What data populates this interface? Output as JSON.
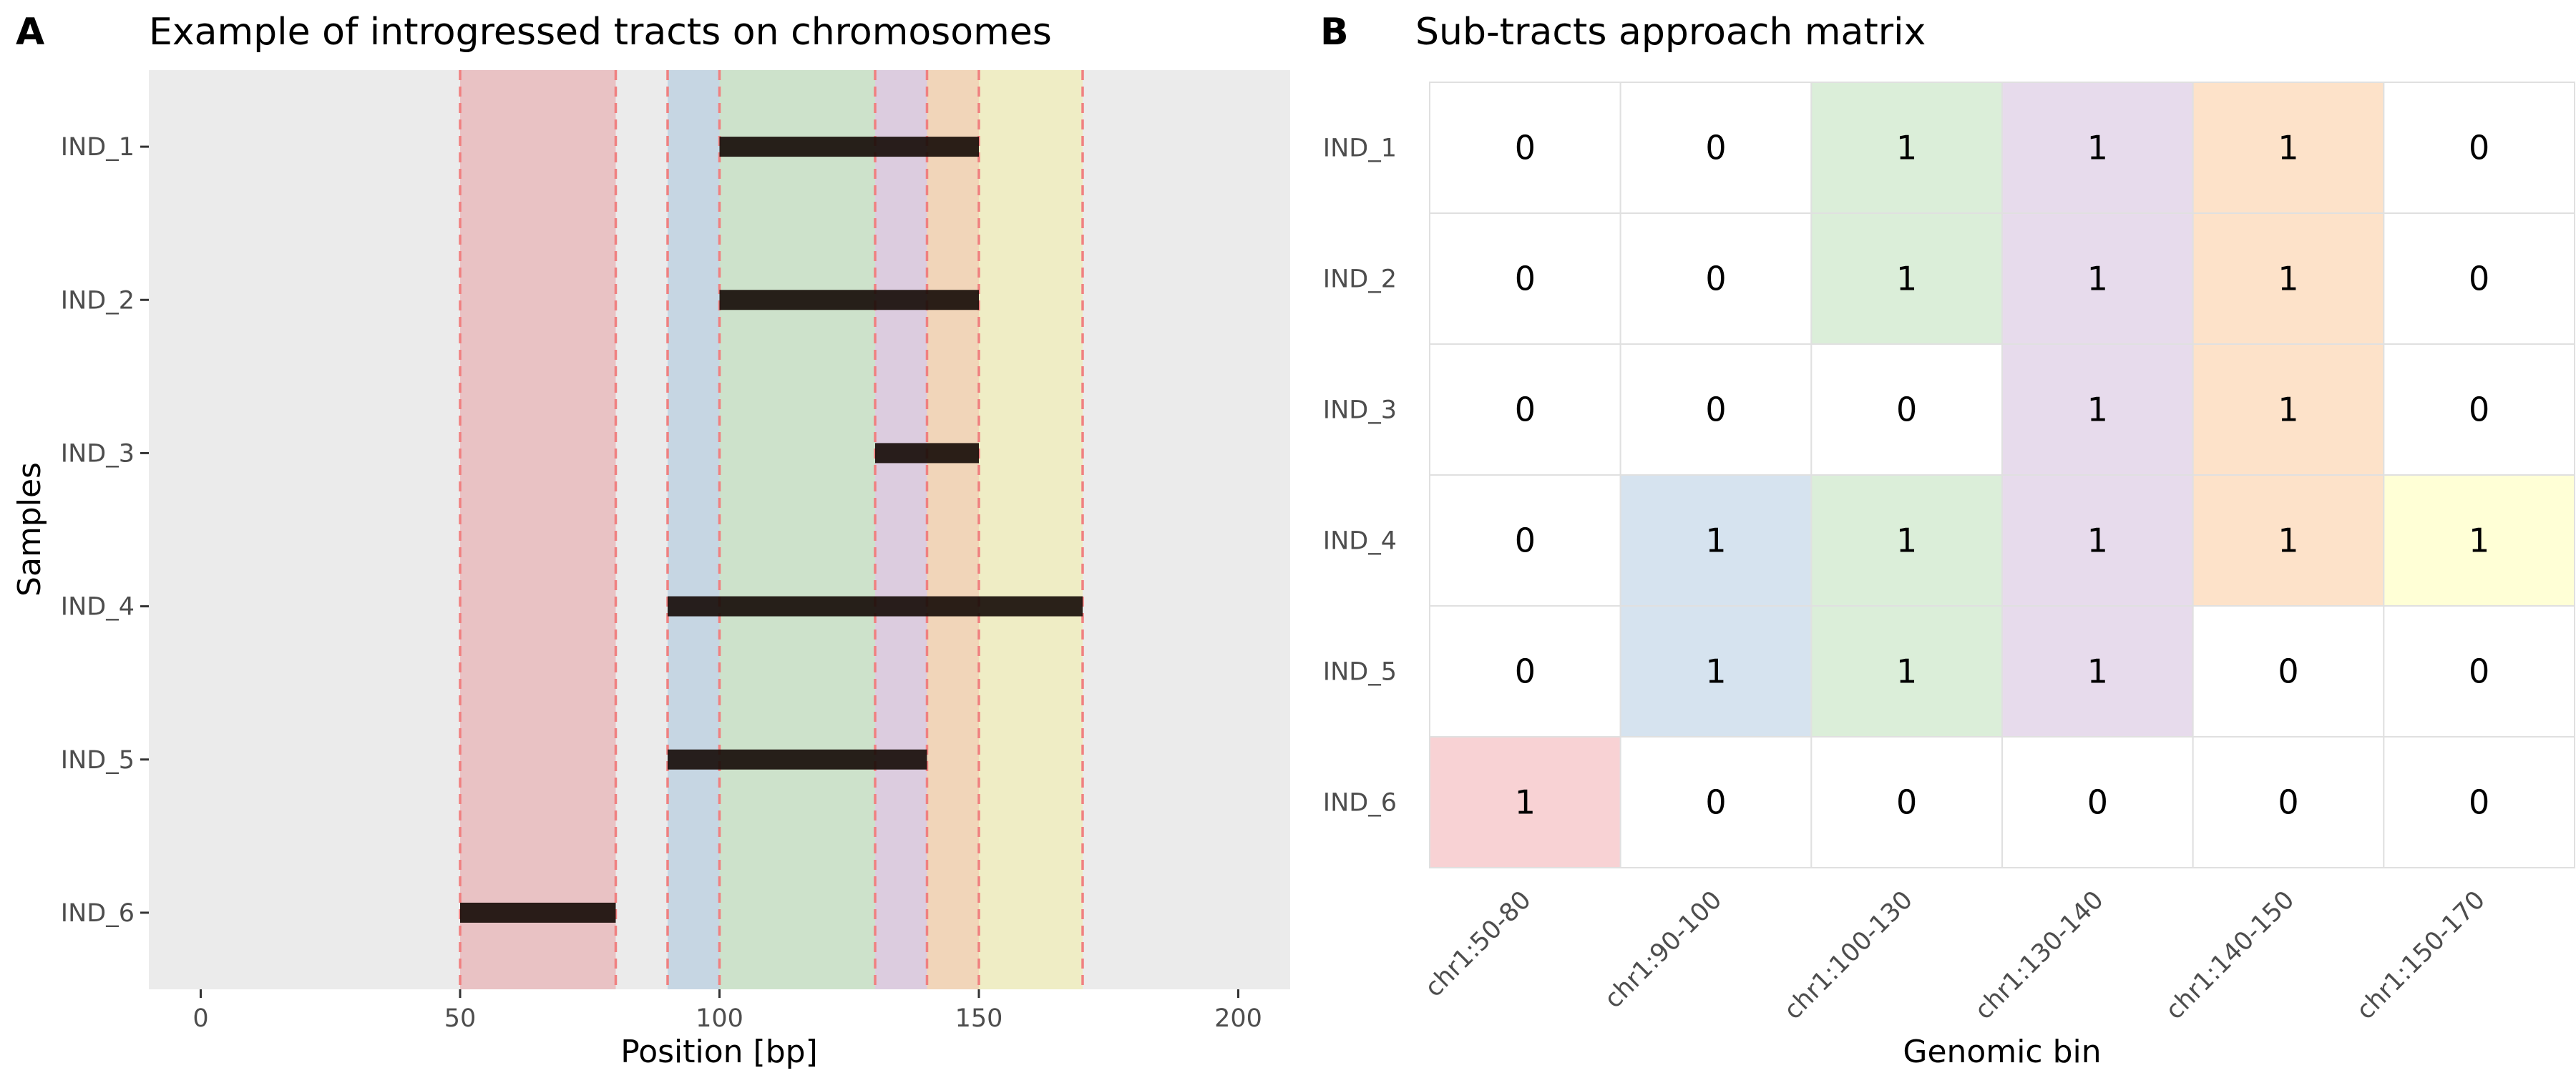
{
  "panel_a": {
    "letter": "A",
    "title": "Example of introgressed tracts on chromosomes",
    "xlabel": "Position [bp]",
    "ylabel": "Samples"
  },
  "panel_b": {
    "letter": "B",
    "title": "Sub-tracts approach matrix",
    "xlabel": "Genomic bin"
  },
  "chart_data": [
    {
      "type": "range-bar",
      "title": "Example of introgressed tracts on chromosomes",
      "xlabel": "Position [bp]",
      "ylabel": "Samples",
      "xlim": [
        -10,
        210
      ],
      "x_ticks": [
        0,
        50,
        100,
        150,
        200
      ],
      "categories": [
        "IND_1",
        "IND_2",
        "IND_3",
        "IND_4",
        "IND_5",
        "IND_6"
      ],
      "tracts": [
        {
          "sample": "IND_1",
          "start": 100,
          "end": 150
        },
        {
          "sample": "IND_2",
          "start": 100,
          "end": 150
        },
        {
          "sample": "IND_3",
          "start": 130,
          "end": 150
        },
        {
          "sample": "IND_4",
          "start": 90,
          "end": 170
        },
        {
          "sample": "IND_5",
          "start": 90,
          "end": 140
        },
        {
          "sample": "IND_6",
          "start": 50,
          "end": 80
        }
      ],
      "bins": [
        {
          "start": 50,
          "end": 80,
          "color": "#e8a0a4"
        },
        {
          "start": 90,
          "end": 100,
          "color": "#a7c4dc"
        },
        {
          "start": 100,
          "end": 130,
          "color": "#b5dbb0"
        },
        {
          "start": 130,
          "end": 140,
          "color": "#cfb3d6"
        },
        {
          "start": 140,
          "end": 150,
          "color": "#f5c290"
        },
        {
          "start": 150,
          "end": 170,
          "color": "#f2efa6"
        }
      ],
      "boundaries": [
        50,
        80,
        90,
        100,
        130,
        140,
        150,
        170
      ],
      "boundary_color": "#f08080",
      "panel_bg": "#ebebeb",
      "tract_color": "#140a05",
      "grid": false
    },
    {
      "type": "heatmap",
      "title": "Sub-tracts approach matrix",
      "xlabel": "Genomic bin",
      "columns": [
        "chr1:50-80",
        "chr1:90-100",
        "chr1:100-130",
        "chr1:130-140",
        "chr1:140-150",
        "chr1:150-170"
      ],
      "rows": [
        "IND_1",
        "IND_2",
        "IND_3",
        "IND_4",
        "IND_5",
        "IND_6"
      ],
      "values": [
        [
          0,
          0,
          1,
          1,
          1,
          0
        ],
        [
          0,
          0,
          1,
          1,
          1,
          0
        ],
        [
          0,
          0,
          0,
          1,
          1,
          0
        ],
        [
          0,
          1,
          1,
          1,
          1,
          1
        ],
        [
          0,
          1,
          1,
          1,
          0,
          0
        ],
        [
          1,
          0,
          0,
          0,
          0,
          0
        ]
      ],
      "column_colors": [
        "#f8d2d4",
        "#d6e3ef",
        "#dbeed9",
        "#e7dbec",
        "#fde2c9",
        "#ffffd6"
      ],
      "zero_color": "#ffffff",
      "grid_color": "#e0e0e0"
    }
  ]
}
